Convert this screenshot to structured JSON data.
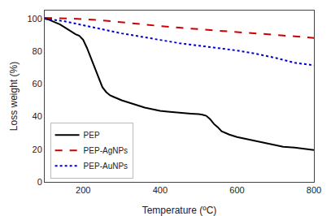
{
  "chart_data": {
    "type": "line",
    "xlabel": "Temperature (ºC)",
    "ylabel": "Loss weight (%)",
    "xlim": [
      100,
      800
    ],
    "ylim": [
      0,
      105
    ],
    "xticks": [
      200,
      400,
      600,
      800
    ],
    "yticks": [
      0,
      20,
      40,
      60,
      80,
      100
    ],
    "grid": false,
    "legend": "lower left",
    "series": [
      {
        "name": "PEP",
        "color": "#000000",
        "line_style": "solid",
        "x": [
          100,
          110,
          120,
          130,
          140,
          150,
          160,
          170,
          180,
          190,
          200,
          210,
          220,
          230,
          240,
          250,
          260,
          270,
          280,
          290,
          300,
          320,
          340,
          360,
          380,
          400,
          420,
          440,
          460,
          480,
          500,
          510,
          520,
          530,
          540,
          550,
          560,
          580,
          600,
          620,
          640,
          660,
          680,
          700,
          720,
          750,
          780,
          800
        ],
        "values": [
          100,
          99.5,
          98.5,
          97.5,
          96.5,
          95.0,
          93.5,
          92.0,
          90.5,
          89.5,
          87.0,
          82.0,
          76.0,
          70.0,
          64.0,
          58.0,
          55.0,
          53.0,
          52.0,
          51.0,
          50.0,
          48.5,
          47.0,
          45.5,
          44.5,
          43.5,
          43.0,
          42.5,
          42.0,
          41.8,
          41.5,
          41.2,
          40.5,
          38.5,
          35.5,
          33.5,
          31.0,
          29.0,
          27.5,
          26.5,
          25.5,
          24.5,
          23.5,
          22.5,
          21.5,
          21.0,
          20.0,
          19.5
        ]
      },
      {
        "name": "PEP-AgNPs",
        "color": "#cc0000",
        "line_style": "dashed",
        "x": [
          100,
          150,
          200,
          250,
          300,
          350,
          400,
          450,
          500,
          550,
          600,
          650,
          700,
          750,
          800
        ],
        "values": [
          100.5,
          100.3,
          99.8,
          99.0,
          97.8,
          96.5,
          95.5,
          94.5,
          93.5,
          92.5,
          91.8,
          91.0,
          90.2,
          89.2,
          88.2
        ]
      },
      {
        "name": "PEP-AuNPs",
        "color": "#0000cc",
        "line_style": "dotted",
        "x": [
          100,
          120,
          150,
          180,
          200,
          250,
          300,
          350,
          400,
          450,
          500,
          550,
          600,
          650,
          700,
          750,
          800
        ],
        "values": [
          100,
          99.5,
          98.5,
          97.0,
          96.0,
          93.5,
          91.0,
          89.0,
          87.0,
          85.0,
          83.5,
          82.0,
          80.5,
          78.5,
          76.0,
          73.0,
          71.5
        ]
      }
    ]
  }
}
